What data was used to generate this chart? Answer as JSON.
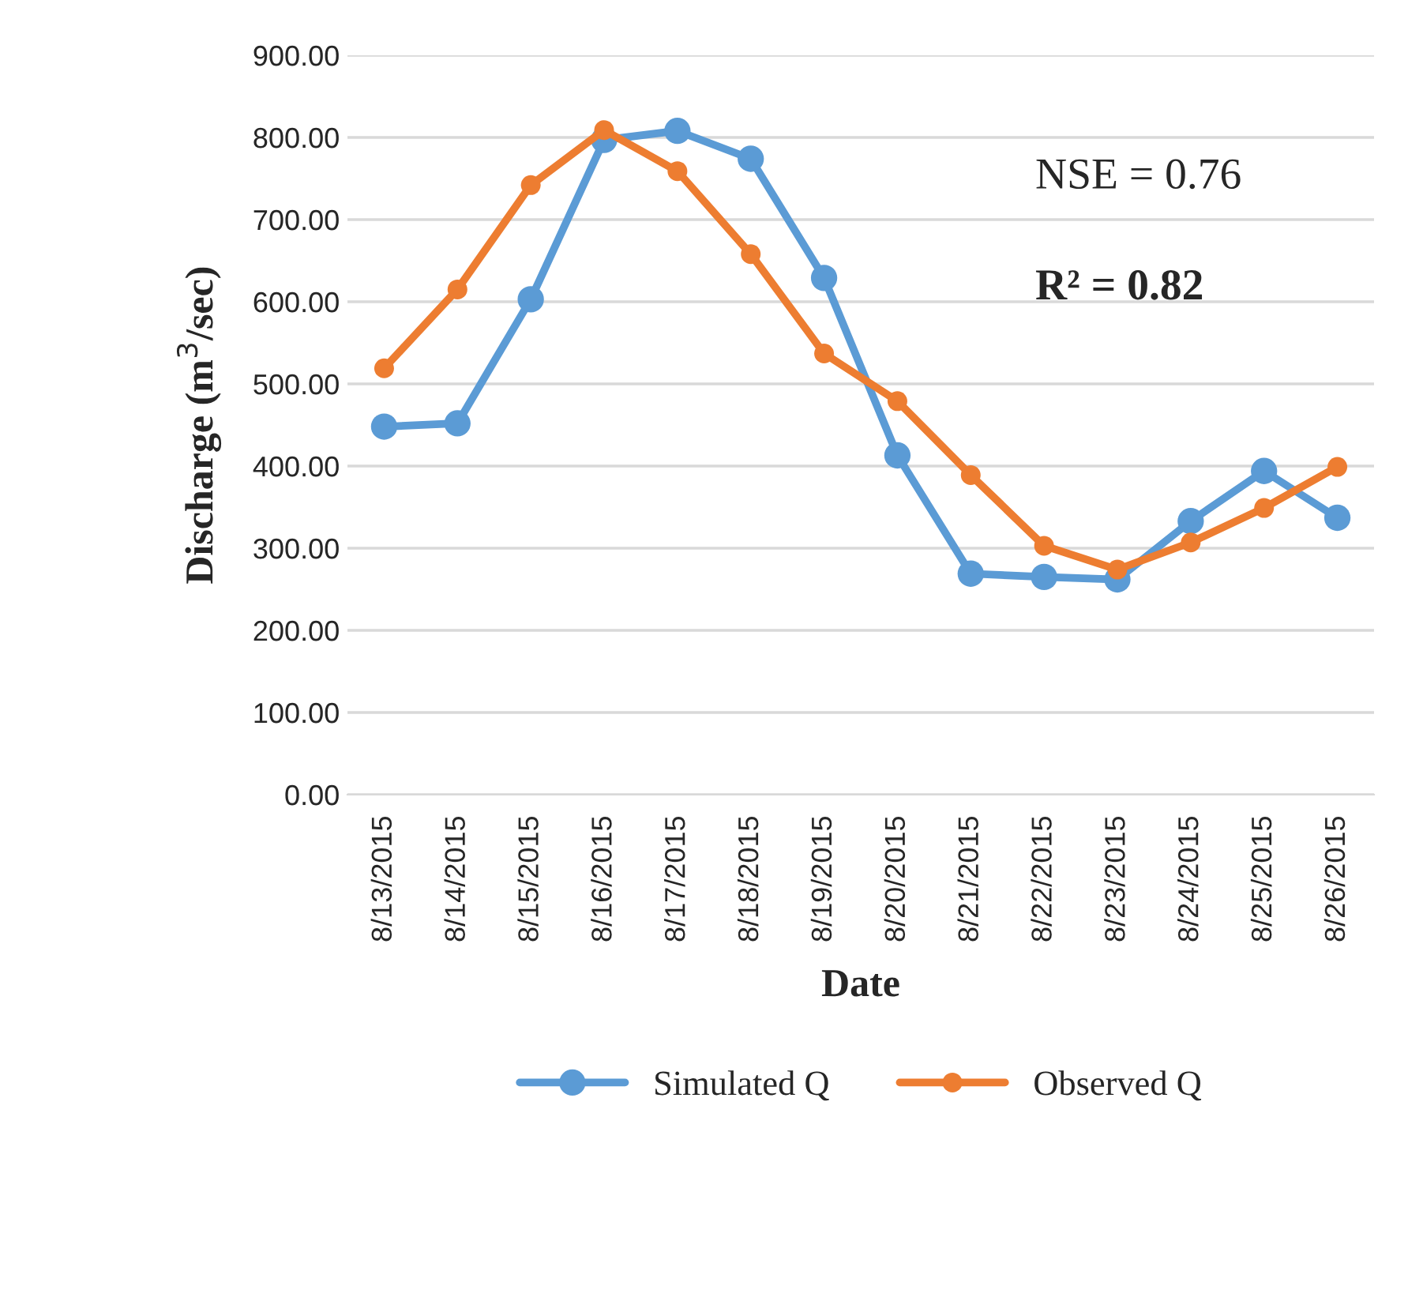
{
  "chart_data": {
    "type": "line",
    "categories": [
      "8/13/2015",
      "8/14/2015",
      "8/15/2015",
      "8/16/2015",
      "8/17/2015",
      "8/18/2015",
      "8/19/2015",
      "8/20/2015",
      "8/21/2015",
      "8/22/2015",
      "8/23/2015",
      "8/24/2015",
      "8/25/2015",
      "8/26/2015"
    ],
    "series": [
      {
        "name": "Simulated Q",
        "color": "#5b9bd5",
        "values": [
          448,
          452,
          603,
          797,
          808,
          774,
          629,
          413,
          269,
          265,
          262,
          333,
          394,
          337
        ]
      },
      {
        "name": "Observed Q",
        "color": "#ed7d31",
        "values": [
          519,
          615,
          742,
          809,
          759,
          658,
          537,
          479,
          389,
          303,
          274,
          307,
          349,
          399
        ]
      }
    ],
    "xlabel": "Date",
    "ylabel": "Discharge (m$^{3}$/sec)",
    "ylim": [
      0,
      900
    ],
    "yticks": [
      {
        "value": 0,
        "label": "0.00"
      },
      {
        "value": 100,
        "label": "100.00"
      },
      {
        "value": 200,
        "label": "200.00"
      },
      {
        "value": 300,
        "label": "300.00"
      },
      {
        "value": 400,
        "label": "400.00"
      },
      {
        "value": 500,
        "label": "500.00"
      },
      {
        "value": 600,
        "label": "600.00"
      },
      {
        "value": 700,
        "label": "700.00"
      },
      {
        "value": 800,
        "label": "800.00"
      },
      {
        "value": 900,
        "label": "900.00"
      }
    ],
    "annotations": [
      "NSE = 0.76",
      "R² = 0.82"
    ],
    "grid": "y",
    "legend": "bottom",
    "marker": "circle",
    "line_style": "solid"
  }
}
